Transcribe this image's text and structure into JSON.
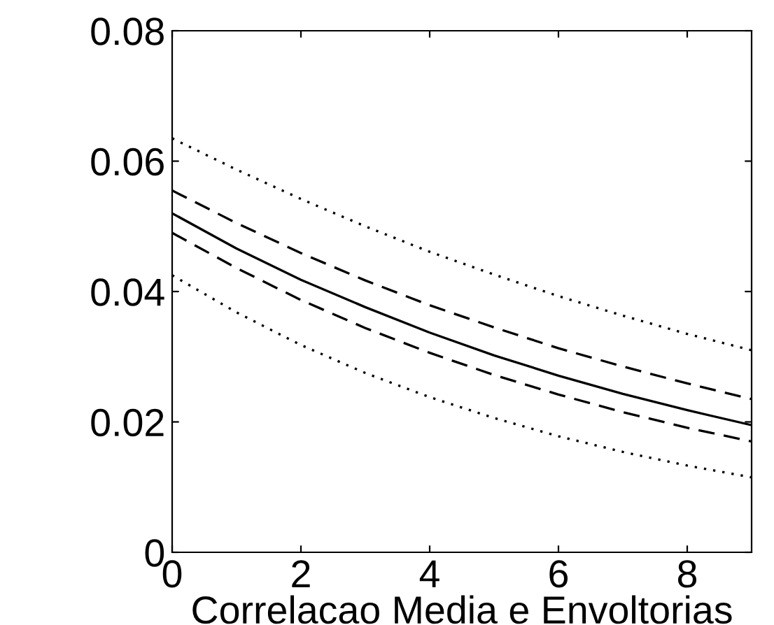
{
  "chart_data": {
    "type": "line",
    "xlabel": "Correlacao Media e Envoltorias",
    "x": [
      0,
      1,
      2,
      3,
      4,
      5,
      6,
      7,
      8,
      9
    ],
    "series": [
      {
        "color": "#000000",
        "line_style": "dotted",
        "values": [
          0.0635,
          0.0587,
          0.0542,
          0.05,
          0.0461,
          0.0426,
          0.0393,
          0.0363,
          0.0335,
          0.031
        ]
      },
      {
        "color": "#000000",
        "line_style": "dashed",
        "values": [
          0.0555,
          0.0505,
          0.0459,
          0.0417,
          0.0379,
          0.0345,
          0.0313,
          0.0285,
          0.0259,
          0.0235
        ]
      },
      {
        "color": "#000000",
        "line_style": "solid",
        "values": [
          0.052,
          0.0466,
          0.0418,
          0.0376,
          0.0337,
          0.0302,
          0.0271,
          0.0243,
          0.0218,
          0.0195
        ]
      },
      {
        "color": "#000000",
        "line_style": "dashed",
        "values": [
          0.049,
          0.0436,
          0.0387,
          0.0344,
          0.0306,
          0.0272,
          0.0242,
          0.0215,
          0.0191,
          0.017
        ]
      },
      {
        "color": "#000000",
        "line_style": "dotted",
        "values": [
          0.0425,
          0.0368,
          0.0318,
          0.0275,
          0.0238,
          0.0206,
          0.0178,
          0.0154,
          0.0133,
          0.0115
        ]
      }
    ],
    "xlim": [
      0,
      9
    ],
    "xticks": [
      0,
      2,
      4,
      6,
      8
    ],
    "ylim": [
      0,
      0.08
    ],
    "yticks": [
      0,
      0.02,
      0.04,
      0.06,
      0.08
    ],
    "grid": false
  }
}
